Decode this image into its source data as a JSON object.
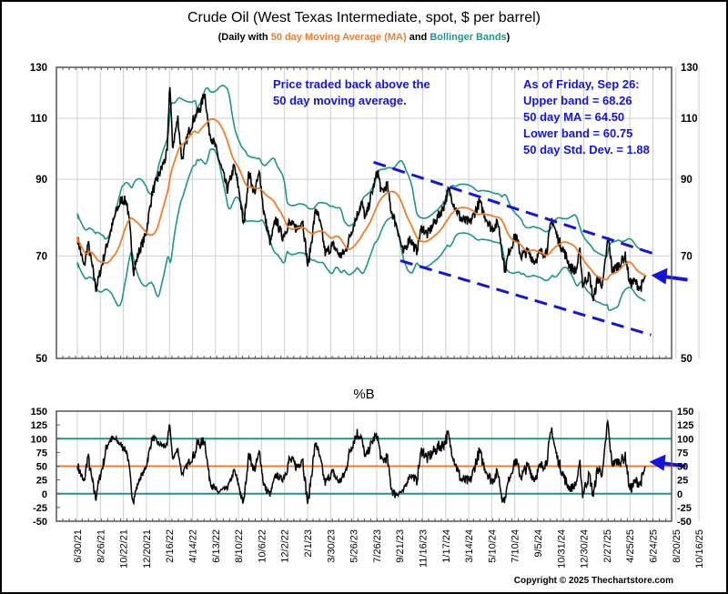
{
  "chart_data": [
    {
      "type": "line",
      "title": "Crude Oil (West Texas Intermediate, spot, $ per barrel)",
      "subtitle": {
        "prefix": "(Daily with ",
        "ma": "50 day Moving Average (MA)",
        "mid": " and ",
        "bb": "Bollinger Bands",
        "suffix": ")"
      },
      "yscale": "log",
      "ylim": [
        50,
        130
      ],
      "yticks": [
        130,
        110,
        90,
        70,
        50
      ],
      "xlim_years": [
        2021.35,
        2025.93
      ],
      "xticks": [
        {
          "label": "6/30/21",
          "year": 2021.5
        },
        {
          "label": "8/26/21",
          "year": 2021.65
        },
        {
          "label": "10/22/21",
          "year": 2021.81
        },
        {
          "label": "12/20/21",
          "year": 2021.97
        },
        {
          "label": "2/16/22",
          "year": 2022.13
        },
        {
          "label": "4/14/22",
          "year": 2022.28
        },
        {
          "label": "6/13/22",
          "year": 2022.45
        },
        {
          "label": "8/10/22",
          "year": 2022.61
        },
        {
          "label": "10/6/22",
          "year": 2022.76
        },
        {
          "label": "12/2/22",
          "year": 2022.92
        },
        {
          "label": "2/1/23",
          "year": 2023.09
        },
        {
          "label": "3/30/23",
          "year": 2023.24
        },
        {
          "label": "5/26/23",
          "year": 2023.4
        },
        {
          "label": "7/26/23",
          "year": 2023.57
        },
        {
          "label": "9/21/23",
          "year": 2023.72
        },
        {
          "label": "11/16/23",
          "year": 2023.88
        },
        {
          "label": "1/17/24",
          "year": 2024.05
        },
        {
          "label": "3/14/24",
          "year": 2024.2
        },
        {
          "label": "5/10/24",
          "year": 2024.36
        },
        {
          "label": "7/10/24",
          "year": 2024.52
        },
        {
          "label": "9/5/24",
          "year": 2024.68
        },
        {
          "label": "10/31/24",
          "year": 2024.83
        },
        {
          "label": "12/30/24",
          "year": 2024.99
        },
        {
          "label": "2/27/25",
          "year": 2025.16
        },
        {
          "label": "4/25/25",
          "year": 2025.31
        },
        {
          "label": "6/24/25",
          "year": 2025.48
        },
        {
          "label": "8/20/25",
          "year": 2025.63
        },
        {
          "label": "10/16/25",
          "year": 2025.79
        }
      ],
      "series": [
        {
          "name": "WTI spot price",
          "color": "#000000",
          "points": [
            [
              2021.5,
              74.5
            ],
            [
              2021.55,
              67.4
            ],
            [
              2021.58,
              73
            ],
            [
              2021.64,
              62.8
            ],
            [
              2021.69,
              68.8
            ],
            [
              2021.72,
              72.5
            ],
            [
              2021.79,
              81
            ],
            [
              2021.83,
              84.3
            ],
            [
              2021.87,
              83.5
            ],
            [
              2021.89,
              77
            ],
            [
              2021.92,
              66.6
            ],
            [
              2021.96,
              71
            ],
            [
              2022.01,
              75
            ],
            [
              2022.06,
              86.4
            ],
            [
              2022.12,
              92.5
            ],
            [
              2022.17,
              98
            ],
            [
              2022.19,
              124
            ],
            [
              2022.21,
              100
            ],
            [
              2022.25,
              110
            ],
            [
              2022.28,
              96
            ],
            [
              2022.33,
              105
            ],
            [
              2022.37,
              110
            ],
            [
              2022.42,
              114
            ],
            [
              2022.45,
              120
            ],
            [
              2022.48,
              106
            ],
            [
              2022.53,
              100
            ],
            [
              2022.57,
              94
            ],
            [
              2022.62,
              87
            ],
            [
              2022.67,
              94
            ],
            [
              2022.71,
              86
            ],
            [
              2022.74,
              77
            ],
            [
              2022.78,
              92
            ],
            [
              2022.82,
              86
            ],
            [
              2022.86,
              92
            ],
            [
              2022.89,
              81
            ],
            [
              2022.94,
              73
            ],
            [
              2022.98,
              79
            ],
            [
              2023.03,
              74.5
            ],
            [
              2023.08,
              78
            ],
            [
              2023.14,
              76.5
            ],
            [
              2023.18,
              79
            ],
            [
              2023.22,
              67.4
            ],
            [
              2023.28,
              82
            ],
            [
              2023.32,
              76.5
            ],
            [
              2023.35,
              70.6
            ],
            [
              2023.41,
              72.5
            ],
            [
              2023.46,
              70
            ],
            [
              2023.5,
              71
            ],
            [
              2023.55,
              76.5
            ],
            [
              2023.62,
              83.5
            ],
            [
              2023.65,
              79
            ],
            [
              2023.69,
              85
            ],
            [
              2023.74,
              92.5
            ],
            [
              2023.77,
              86
            ],
            [
              2023.81,
              88.5
            ],
            [
              2023.84,
              81.5
            ],
            [
              2023.89,
              76.5
            ],
            [
              2023.93,
              70.5
            ],
            [
              2023.98,
              74.3
            ],
            [
              2024.03,
              71
            ],
            [
              2024.07,
              77
            ],
            [
              2024.11,
              75
            ],
            [
              2024.18,
              79
            ],
            [
              2024.23,
              82
            ],
            [
              2024.27,
              87
            ],
            [
              2024.32,
              82
            ],
            [
              2024.36,
              79
            ],
            [
              2024.43,
              78
            ],
            [
              2024.5,
              83.5
            ],
            [
              2024.54,
              80
            ],
            [
              2024.59,
              76.5
            ],
            [
              2024.64,
              78
            ],
            [
              2024.69,
              66.6
            ],
            [
              2024.72,
              71
            ],
            [
              2024.77,
              75
            ],
            [
              2024.81,
              70
            ],
            [
              2024.86,
              71
            ],
            [
              2024.91,
              68.8
            ],
            [
              2024.95,
              70.6
            ],
            [
              2025.0,
              71
            ],
            [
              2025.04,
              79
            ],
            [
              2025.08,
              74.5
            ],
            [
              2025.13,
              71
            ],
            [
              2025.18,
              67.4
            ],
            [
              2025.22,
              66.6
            ],
            [
              2025.25,
              71
            ],
            [
              2025.27,
              63.8
            ],
            [
              2025.32,
              65.7
            ],
            [
              2025.35,
              60.5
            ],
            [
              2025.38,
              64.9
            ],
            [
              2025.42,
              63.7
            ],
            [
              2025.46,
              74.5
            ],
            [
              2025.49,
              66.6
            ],
            [
              2025.54,
              68
            ],
            [
              2025.59,
              70
            ],
            [
              2025.62,
              64
            ],
            [
              2025.66,
              64.3
            ],
            [
              2025.7,
              62.9
            ],
            [
              2025.74,
              65.5
            ]
          ]
        },
        {
          "name": "50 day Moving Average (MA)",
          "color": "#f07d2a",
          "window_days": 50
        },
        {
          "name": "Bollinger Bands",
          "color": "#1f958b",
          "std_devs": 2
        }
      ],
      "trend_channel": {
        "color": "#1414dc",
        "upper": [
          [
            2023.71,
            95.2
          ],
          [
            2025.8,
            70.5
          ]
        ],
        "lower": [
          [
            2023.91,
            68.9
          ],
          [
            2025.78,
            54.0
          ]
        ]
      },
      "current_price_arrow": {
        "year": 2025.74,
        "value": 65.5,
        "color": "#1414dc"
      },
      "annotations": {
        "left": [
          "Price traded back above the",
          "50 day moving average."
        ],
        "right": [
          "As of Friday, Sep 26:",
          "Upper band = 68.26",
          "50 day MA = 64.50",
          "Lower band = 60.75",
          "50 day Std. Dev. = 1.88"
        ]
      }
    },
    {
      "type": "line",
      "title": "%B",
      "ylim": [
        -50,
        150
      ],
      "yticks": [
        150,
        125,
        100,
        75,
        50,
        25,
        0,
        -25,
        -50
      ],
      "reference_lines": [
        {
          "value": 100,
          "color": "#1f958b"
        },
        {
          "value": 50,
          "color": "#f07d2a"
        },
        {
          "value": 0,
          "color": "#1f958b"
        }
      ],
      "series": [
        {
          "name": "%B",
          "color": "#000000",
          "derived_from": "price and Bollinger Bands"
        }
      ],
      "current_arrow": {
        "value": 58,
        "color": "#1414dc"
      }
    }
  ],
  "footer": {
    "copyright": "Copyright © 2025 Thechartstore.com"
  }
}
